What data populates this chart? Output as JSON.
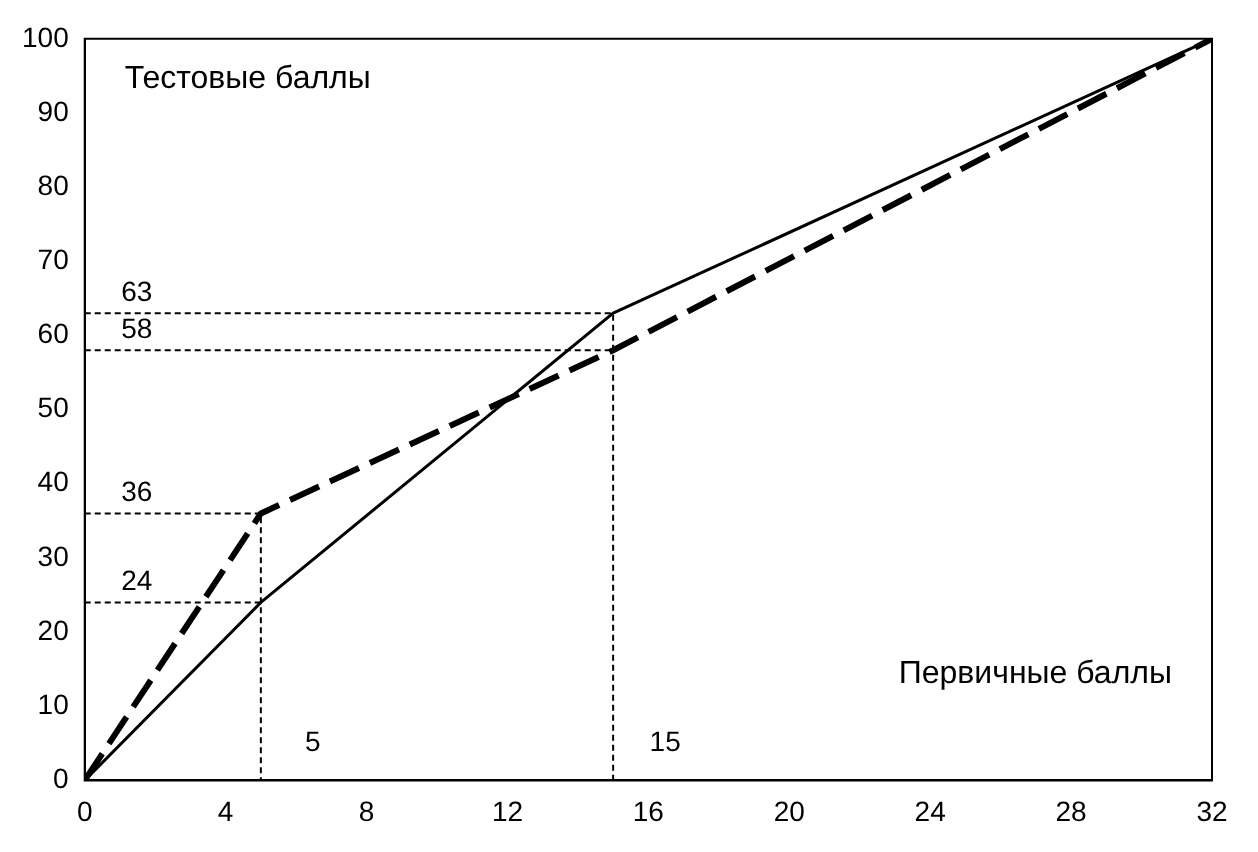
{
  "chart_data": {
    "type": "line",
    "xlabel": "Первичные баллы",
    "ylabel": "Тестовые баллы",
    "xlim": [
      0,
      32
    ],
    "xticks": [
      0,
      4,
      8,
      12,
      16,
      20,
      24,
      28,
      32
    ],
    "ylim": [
      0,
      100
    ],
    "yticks": [
      0,
      10,
      20,
      30,
      40,
      50,
      60,
      70,
      80,
      90,
      100
    ],
    "grid": false,
    "legend": false,
    "marker": "none",
    "series": [
      {
        "color": "#000000",
        "line_style": "solid",
        "x": [
          0,
          5,
          15,
          32
        ],
        "values": [
          0,
          24,
          63,
          100
        ]
      },
      {
        "color": "#000000",
        "line_style": "dashed",
        "x": [
          0,
          5,
          15,
          32
        ],
        "values": [
          0,
          36,
          58,
          100
        ]
      },
      {
        "color": "#000000",
        "line_style": "dotted",
        "x": [
          0,
          15,
          15
        ],
        "values": [
          63,
          63,
          0
        ]
      },
      {
        "color": "#000000",
        "line_style": "dotted",
        "x": [
          0,
          15
        ],
        "values": [
          58,
          58
        ]
      },
      {
        "color": "#000000",
        "line_style": "dotted",
        "x": [
          0,
          5,
          5
        ],
        "values": [
          36,
          36,
          0
        ]
      },
      {
        "color": "#000000",
        "line_style": "dotted",
        "x": [
          0,
          5
        ],
        "values": [
          24,
          24
        ]
      }
    ],
    "annotations": [
      {
        "text": "63",
        "x": 0,
        "y": 63
      },
      {
        "text": "58",
        "x": 0,
        "y": 58
      },
      {
        "text": "36",
        "x": 0,
        "y": 36
      },
      {
        "text": "24",
        "x": 0,
        "y": 24
      },
      {
        "text": "5",
        "x": 5,
        "y": 5
      },
      {
        "text": "15",
        "x": 15,
        "y": 5
      }
    ]
  }
}
